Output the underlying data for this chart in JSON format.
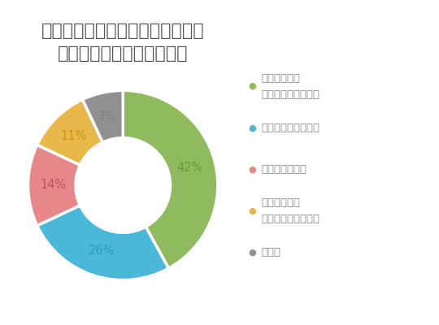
{
  "title": "住宅ローンの返済に困ったとき、\nあなたならどうしますか？",
  "slices": [
    42,
    26,
    14,
    11,
    7
  ],
  "colors": [
    "#8fbb5e",
    "#4ab8d8",
    "#e8878a",
    "#e8b84b",
    "#909090"
  ],
  "pct_labels": [
    "42%",
    "26%",
    "14%",
    "11%",
    "7%"
  ],
  "pct_colors": [
    "#6a9a3a",
    "#2a9abf",
    "#c05060",
    "#c8921a",
    "#808080"
  ],
  "legend_labels_line1": [
    "契約している",
    "親に協力してもらう",
    "住宅を売却する",
    "住宅ローンの",
    "その他"
  ],
  "legend_labels_line2": [
    "金融機関に相談する",
    "",
    "",
    "借り換えを検討する",
    ""
  ],
  "legend_dot_colors": [
    "#8fbb5e",
    "#4ab8d8",
    "#e8878a",
    "#e8b84b",
    "#909090"
  ],
  "title_color": "#555555",
  "legend_text_color": "#888888",
  "title_fontsize": 16,
  "legend_fontsize": 9.5,
  "pct_fontsize": 10.5
}
